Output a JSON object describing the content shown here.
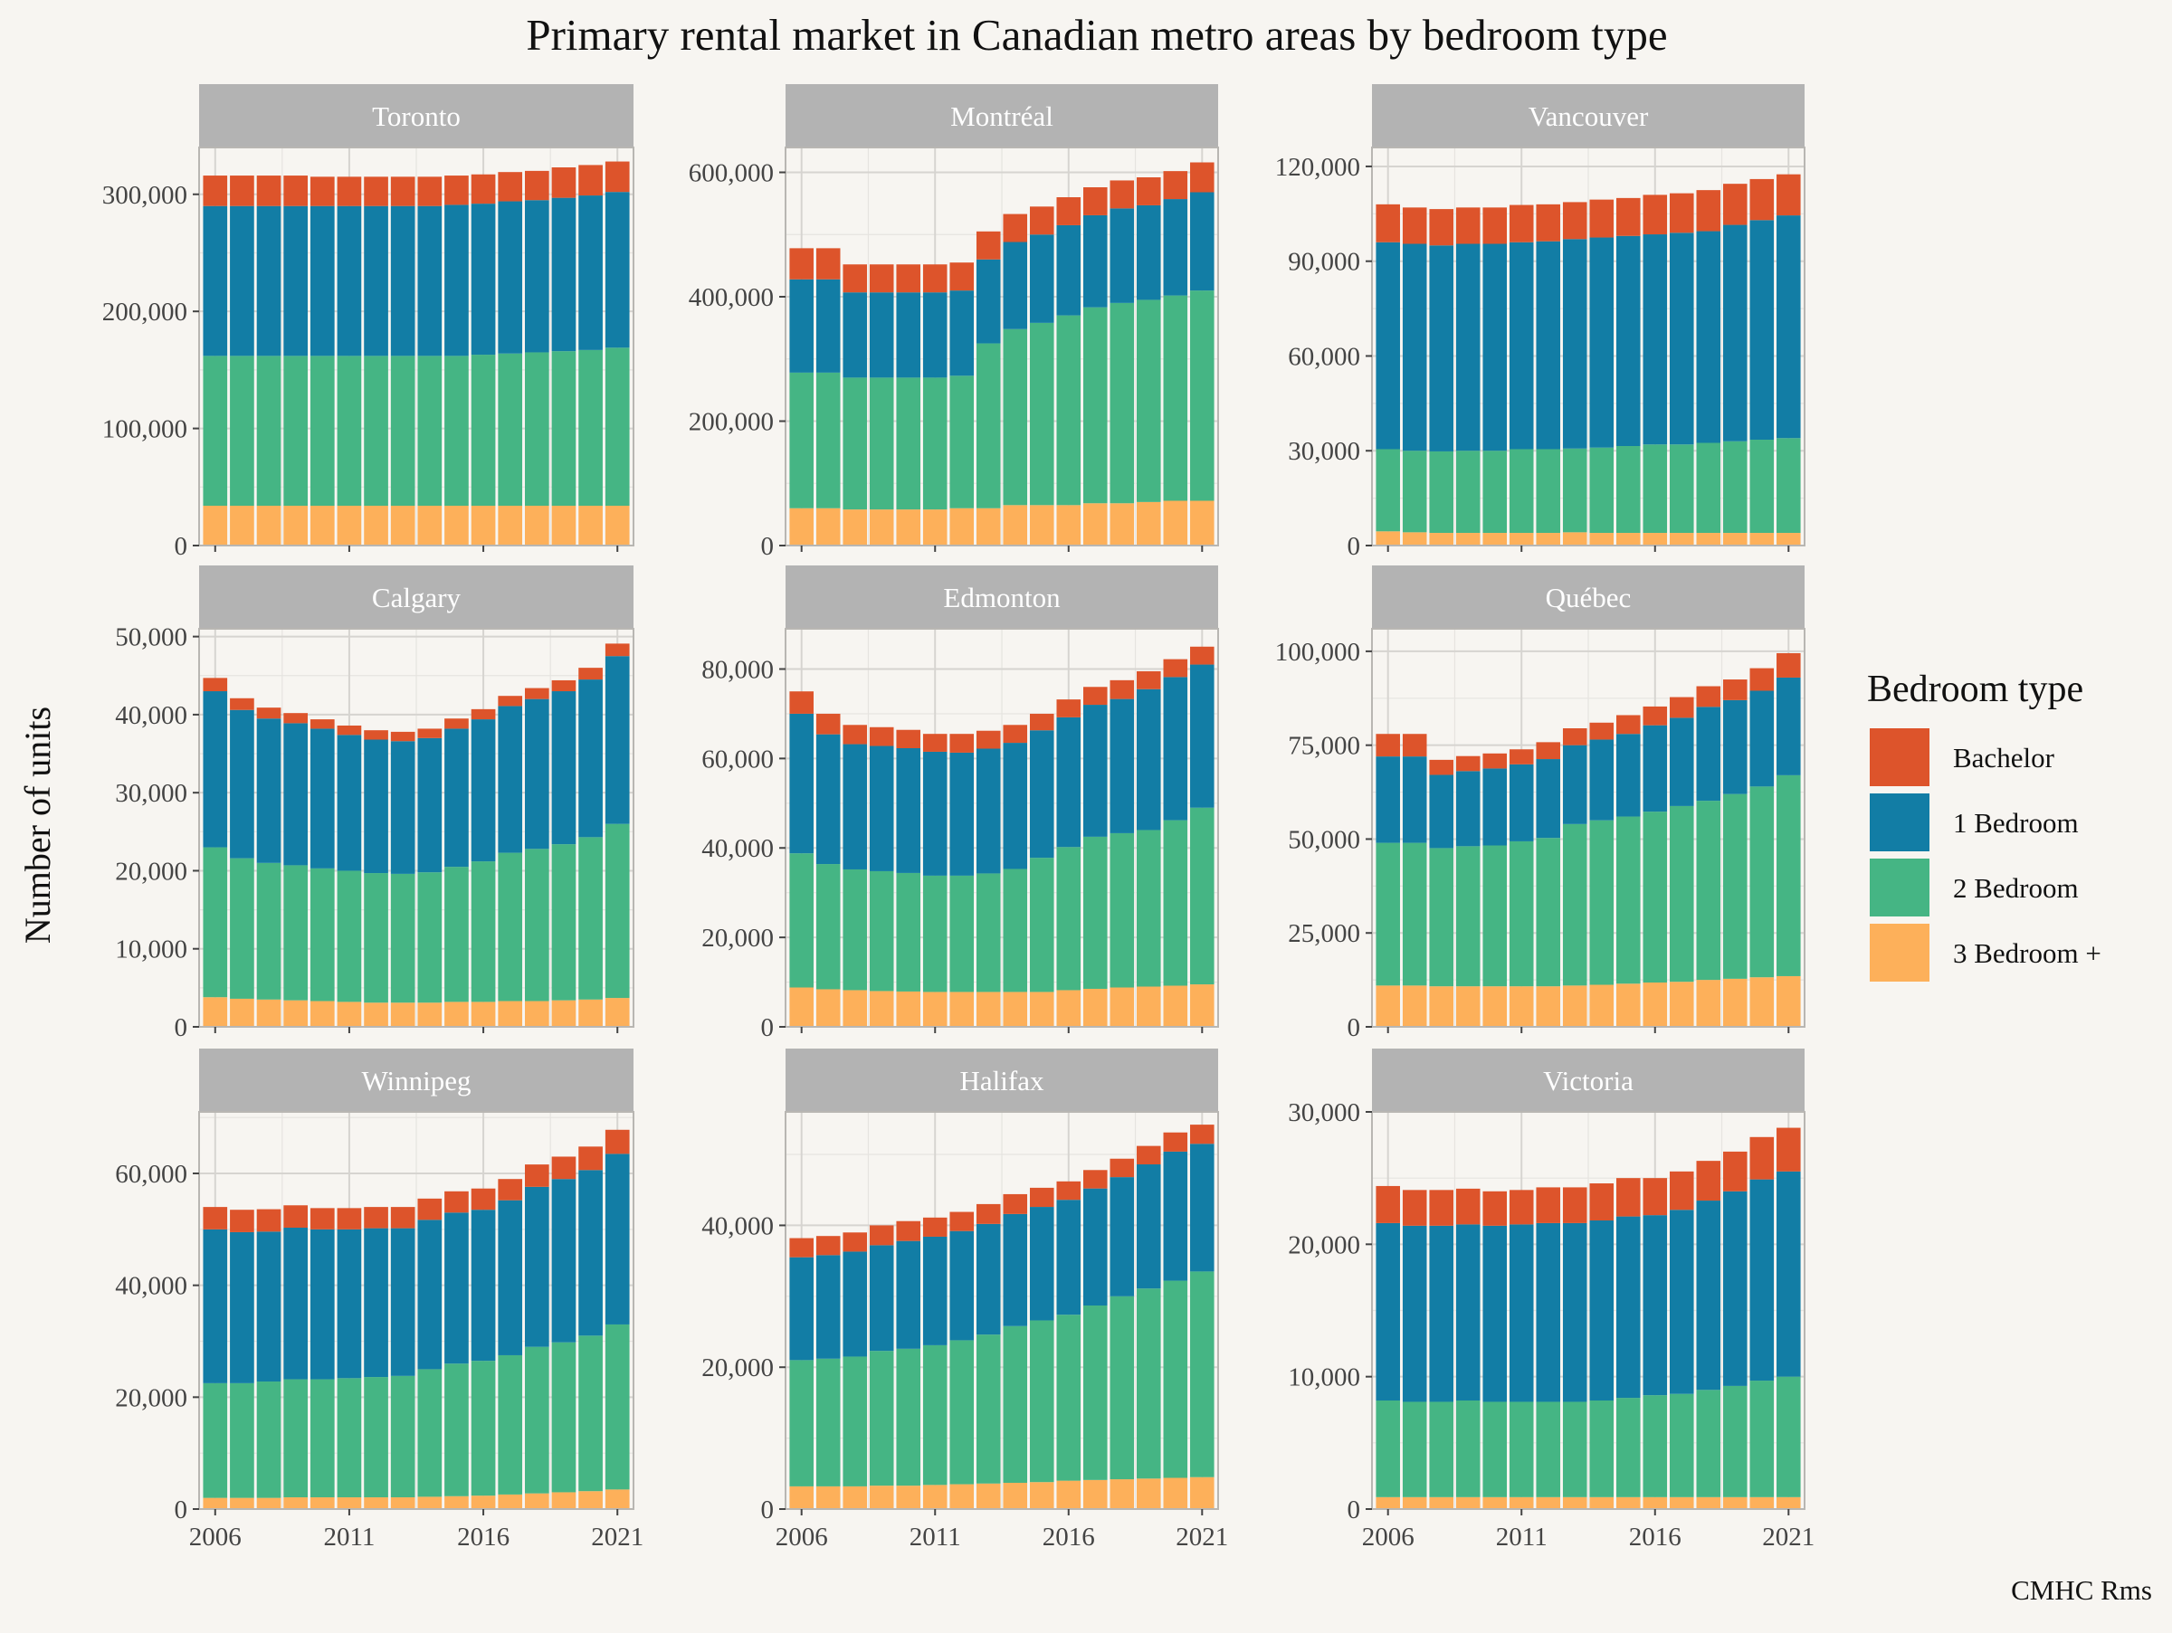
{
  "title": "Primary rental market in Canadian metro areas by bedroom type",
  "ylabel": "Number of units",
  "caption": "CMHC Rms",
  "legend": {
    "title": "Bedroom type",
    "items": [
      {
        "label": "Bachelor",
        "color": "#dd542b"
      },
      {
        "label": "1 Bedroom",
        "color": "#127da5"
      },
      {
        "label": "2 Bedroom",
        "color": "#45b584"
      },
      {
        "label": "3 Bedroom +",
        "color": "#fdb05a"
      }
    ]
  },
  "chart_data": {
    "type": "bar",
    "stacked": true,
    "grid": true,
    "legend_position": "right",
    "x": [
      2006,
      2007,
      2008,
      2009,
      2010,
      2011,
      2012,
      2013,
      2014,
      2015,
      2016,
      2017,
      2018,
      2019,
      2020,
      2021
    ],
    "x_ticks": [
      2006,
      2011,
      2016,
      2021
    ],
    "series_order_bottom_to_top": [
      "3 Bedroom +",
      "2 Bedroom",
      "1 Bedroom",
      "Bachelor"
    ],
    "panels": [
      {
        "name": "Toronto",
        "ylim": [
          0,
          340000
        ],
        "y_ticks": [
          0,
          100000,
          200000,
          300000
        ],
        "tick_labels": [
          "0",
          "100,000",
          "200,000",
          "300,000"
        ],
        "series": [
          {
            "name": "3 Bedroom +",
            "values": [
              34000,
              34000,
              34000,
              34000,
              34000,
              34000,
              34000,
              34000,
              34000,
              34000,
              34000,
              34000,
              34000,
              34000,
              34000,
              34000
            ]
          },
          {
            "name": "2 Bedroom",
            "values": [
              128000,
              128000,
              128000,
              128000,
              128000,
              128000,
              128000,
              128000,
              128000,
              128000,
              129000,
              130000,
              131000,
              132000,
              133000,
              135000
            ]
          },
          {
            "name": "1 Bedroom",
            "values": [
              128000,
              128000,
              128000,
              128000,
              128000,
              128000,
              128000,
              128000,
              128000,
              129000,
              129000,
              130000,
              130000,
              131000,
              132000,
              133000
            ]
          },
          {
            "name": "Bachelor",
            "values": [
              26000,
              26000,
              26000,
              26000,
              25000,
              25000,
              25000,
              25000,
              25000,
              25000,
              25000,
              25000,
              25000,
              26000,
              26000,
              26000
            ]
          }
        ]
      },
      {
        "name": "Montréal",
        "ylim": [
          0,
          640000
        ],
        "y_ticks": [
          0,
          200000,
          400000,
          600000
        ],
        "tick_labels": [
          "0",
          "200,000",
          "400,000",
          "600,000"
        ],
        "series": [
          {
            "name": "3 Bedroom +",
            "values": [
              60000,
              60000,
              58000,
              58000,
              58000,
              58000,
              60000,
              60000,
              65000,
              65000,
              65000,
              68000,
              68000,
              70000,
              72000,
              72000
            ]
          },
          {
            "name": "2 Bedroom",
            "values": [
              218000,
              218000,
              212000,
              212000,
              212000,
              212000,
              213000,
              265000,
              283000,
              293000,
              305000,
              315000,
              322000,
              325000,
              330000,
              338000
            ]
          },
          {
            "name": "1 Bedroom",
            "values": [
              150000,
              150000,
              137000,
              137000,
              137000,
              137000,
              137000,
              135000,
              140000,
              142000,
              145000,
              148000,
              152000,
              152000,
              155000,
              158000
            ]
          },
          {
            "name": "Bachelor",
            "values": [
              50000,
              50000,
              45000,
              45000,
              45000,
              45000,
              45000,
              45000,
              45000,
              45000,
              45000,
              45000,
              45000,
              45000,
              45000,
              48000
            ]
          }
        ]
      },
      {
        "name": "Vancouver",
        "ylim": [
          0,
          126000
        ],
        "y_ticks": [
          0,
          30000,
          60000,
          90000,
          120000
        ],
        "tick_labels": [
          "0",
          "30,000",
          "60,000",
          "90,000",
          "120,000"
        ],
        "series": [
          {
            "name": "3 Bedroom +",
            "values": [
              4500,
              4200,
              4000,
              4000,
              4000,
              4000,
              4000,
              4200,
              4000,
              4000,
              4000,
              4000,
              4000,
              4000,
              4000,
              4000
            ]
          },
          {
            "name": "2 Bedroom",
            "values": [
              26000,
              25800,
              25800,
              26000,
              26000,
              26500,
              26500,
              26500,
              27000,
              27500,
              28000,
              28000,
              28500,
              29000,
              29500,
              30000
            ]
          },
          {
            "name": "1 Bedroom",
            "values": [
              65500,
              65500,
              65200,
              65500,
              65500,
              65500,
              65800,
              66300,
              66500,
              66500,
              66500,
              67000,
              67000,
              68500,
              69500,
              70500
            ]
          },
          {
            "name": "Bachelor",
            "values": [
              12000,
              11500,
              11500,
              11500,
              11500,
              11800,
              11700,
              11700,
              12000,
              12000,
              12500,
              12500,
              13000,
              13000,
              13000,
              13000
            ]
          }
        ]
      },
      {
        "name": "Calgary",
        "ylim": [
          0,
          51000
        ],
        "y_ticks": [
          0,
          10000,
          20000,
          30000,
          40000,
          50000
        ],
        "tick_labels": [
          "0",
          "10,000",
          "20,000",
          "30,000",
          "40,000",
          "50,000"
        ],
        "series": [
          {
            "name": "3 Bedroom +",
            "values": [
              3800,
              3600,
              3500,
              3400,
              3300,
              3200,
              3100,
              3100,
              3100,
              3200,
              3200,
              3300,
              3300,
              3400,
              3500,
              3700
            ]
          },
          {
            "name": "2 Bedroom",
            "values": [
              19200,
              18000,
              17500,
              17300,
              17000,
              16800,
              16600,
              16500,
              16700,
              17300,
              18000,
              19000,
              19500,
              20000,
              20800,
              22300
            ]
          },
          {
            "name": "1 Bedroom",
            "values": [
              20000,
              19000,
              18500,
              18200,
              17900,
              17400,
              17100,
              17000,
              17200,
              17700,
              18200,
              18800,
              19200,
              19600,
              20200,
              21500
            ]
          },
          {
            "name": "Bachelor",
            "values": [
              1700,
              1500,
              1400,
              1300,
              1200,
              1200,
              1200,
              1200,
              1200,
              1300,
              1300,
              1300,
              1400,
              1400,
              1500,
              1600
            ]
          }
        ]
      },
      {
        "name": "Edmonton",
        "ylim": [
          0,
          89000
        ],
        "y_ticks": [
          0,
          20000,
          40000,
          60000,
          80000
        ],
        "tick_labels": [
          "0",
          "20,000",
          "40,000",
          "60,000",
          "80,000"
        ],
        "series": [
          {
            "name": "3 Bedroom +",
            "values": [
              8800,
              8400,
              8200,
              8000,
              7900,
              7800,
              7800,
              7800,
              7800,
              7800,
              8200,
              8500,
              8800,
              9000,
              9200,
              9500
            ]
          },
          {
            "name": "2 Bedroom",
            "values": [
              30000,
              28000,
              27000,
              26800,
              26500,
              26000,
              26000,
              26500,
              27500,
              30000,
              32000,
              34000,
              34500,
              35000,
              37000,
              39500
            ]
          },
          {
            "name": "1 Bedroom",
            "values": [
              31200,
              29000,
              28000,
              28000,
              27900,
              27700,
              27500,
              27900,
              28200,
              28500,
              29000,
              29500,
              30000,
              31500,
              32000,
              32000
            ]
          },
          {
            "name": "Bachelor",
            "values": [
              5000,
              4600,
              4300,
              4200,
              4100,
              4000,
              4200,
              4000,
              4000,
              3700,
              4000,
              4000,
              4200,
              4000,
              4000,
              4000
            ]
          }
        ]
      },
      {
        "name": "Québec",
        "ylim": [
          0,
          106000
        ],
        "y_ticks": [
          0,
          25000,
          50000,
          75000,
          100000
        ],
        "tick_labels": [
          "0",
          "25,000",
          "50,000",
          "75,000",
          "100,000"
        ],
        "series": [
          {
            "name": "3 Bedroom +",
            "values": [
              11000,
              11000,
              10800,
              10800,
              10800,
              10800,
              10800,
              11000,
              11200,
              11500,
              11800,
              12000,
              12500,
              12800,
              13200,
              13500
            ]
          },
          {
            "name": "2 Bedroom",
            "values": [
              38000,
              38000,
              36800,
              37300,
              37500,
              38600,
              39500,
              43000,
              43800,
              44500,
              45500,
              46800,
              47700,
              49200,
              50800,
              53500
            ]
          },
          {
            "name": "1 Bedroom",
            "values": [
              23000,
              23000,
              19500,
              20000,
              20500,
              20500,
              21000,
              21000,
              21500,
              22000,
              23000,
              23500,
              25000,
              25000,
              25500,
              26000
            ]
          },
          {
            "name": "Bachelor",
            "values": [
              6000,
              6000,
              4000,
              4000,
              4000,
              4000,
              4500,
              4500,
              4500,
              5000,
              5000,
              5500,
              5500,
              5500,
              6000,
              6500
            ]
          }
        ]
      },
      {
        "name": "Winnipeg",
        "ylim": [
          0,
          71000
        ],
        "y_ticks": [
          0,
          20000,
          40000,
          60000
        ],
        "tick_labels": [
          "0",
          "20,000",
          "40,000",
          "60,000"
        ],
        "series": [
          {
            "name": "3 Bedroom +",
            "values": [
              2000,
              2000,
              2000,
              2100,
              2100,
              2100,
              2100,
              2100,
              2200,
              2300,
              2400,
              2600,
              2800,
              3000,
              3200,
              3500
            ]
          },
          {
            "name": "2 Bedroom",
            "values": [
              20500,
              20500,
              20800,
              21100,
              21100,
              21300,
              21500,
              21700,
              22800,
              23700,
              24100,
              24900,
              26200,
              26800,
              27800,
              29500
            ]
          },
          {
            "name": "1 Bedroom",
            "values": [
              27500,
              27000,
              26800,
              27100,
              26800,
              26600,
              26600,
              26400,
              26700,
              27000,
              27000,
              27700,
              28600,
              29200,
              29600,
              30500
            ]
          },
          {
            "name": "Bachelor",
            "values": [
              4000,
              4000,
              4000,
              4000,
              3800,
              3800,
              3800,
              3800,
              3800,
              3800,
              3800,
              3800,
              4000,
              4000,
              4200,
              4300
            ]
          }
        ]
      },
      {
        "name": "Halifax",
        "ylim": [
          0,
          56000
        ],
        "y_ticks": [
          0,
          20000,
          40000
        ],
        "tick_labels": [
          "0",
          "20,000",
          "40,000"
        ],
        "series": [
          {
            "name": "3 Bedroom +",
            "values": [
              3200,
              3200,
              3200,
              3300,
              3300,
              3400,
              3500,
              3600,
              3700,
              3800,
              4000,
              4100,
              4200,
              4300,
              4400,
              4500
            ]
          },
          {
            "name": "2 Bedroom",
            "values": [
              17800,
              18000,
              18300,
              19000,
              19300,
              19700,
              20300,
              21000,
              22100,
              22800,
              23400,
              24600,
              25800,
              26800,
              27800,
              29000
            ]
          },
          {
            "name": "1 Bedroom",
            "values": [
              14500,
              14600,
              14800,
              14900,
              15200,
              15300,
              15400,
              15600,
              15800,
              16000,
              16200,
              16500,
              16800,
              17500,
              18200,
              18000
            ]
          },
          {
            "name": "Bachelor",
            "values": [
              2700,
              2700,
              2700,
              2800,
              2800,
              2700,
              2700,
              2800,
              2800,
              2700,
              2600,
              2600,
              2600,
              2600,
              2700,
              2700
            ]
          }
        ]
      },
      {
        "name": "Victoria",
        "ylim": [
          0,
          30000
        ],
        "y_ticks": [
          0,
          10000,
          20000,
          30000
        ],
        "tick_labels": [
          "0",
          "10,000",
          "20,000",
          "30,000"
        ],
        "series": [
          {
            "name": "3 Bedroom +",
            "values": [
              900,
              900,
              900,
              900,
              900,
              900,
              900,
              900,
              900,
              900,
              900,
              900,
              900,
              900,
              900,
              900
            ]
          },
          {
            "name": "2 Bedroom",
            "values": [
              7300,
              7200,
              7200,
              7300,
              7200,
              7200,
              7200,
              7200,
              7300,
              7500,
              7700,
              7800,
              8100,
              8400,
              8800,
              9100
            ]
          },
          {
            "name": "1 Bedroom",
            "values": [
              13400,
              13300,
              13300,
              13300,
              13300,
              13400,
              13500,
              13500,
              13600,
              13700,
              13600,
              13900,
              14300,
              14700,
              15200,
              15500
            ]
          },
          {
            "name": "Bachelor",
            "values": [
              2800,
              2700,
              2700,
              2700,
              2600,
              2600,
              2700,
              2700,
              2800,
              2900,
              2800,
              2900,
              3000,
              3000,
              3200,
              3300
            ]
          }
        ]
      }
    ]
  }
}
